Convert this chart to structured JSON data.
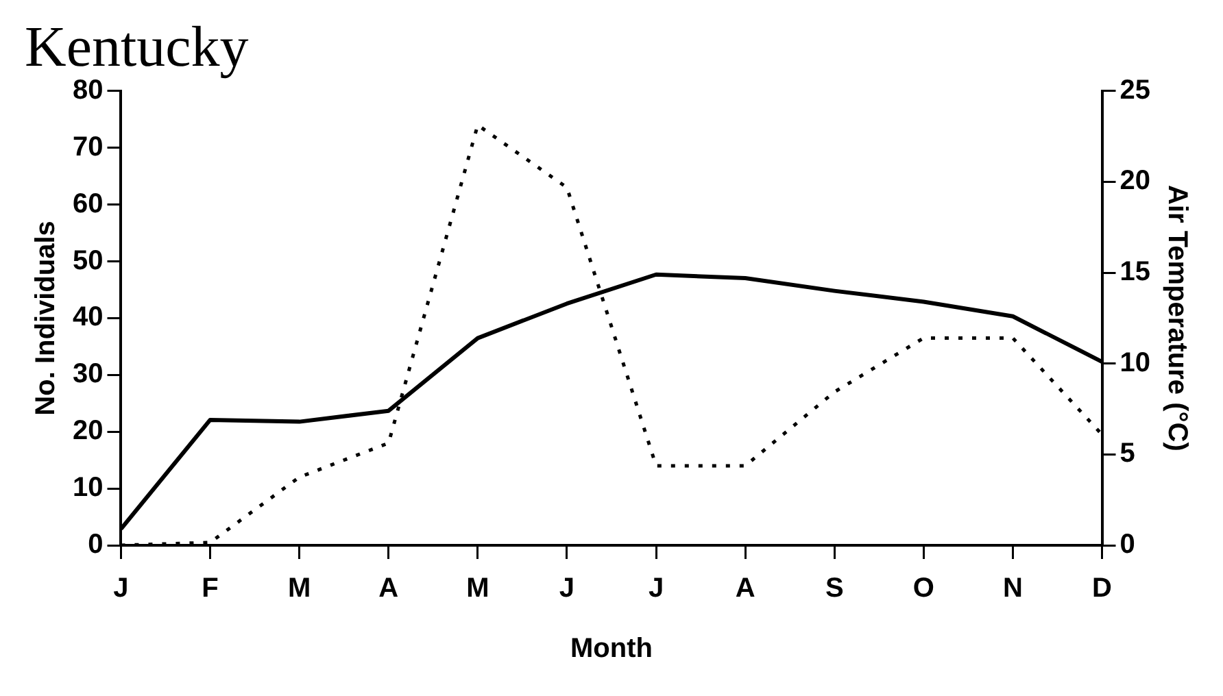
{
  "chart_data": {
    "type": "line",
    "title": "Kentucky",
    "xlabel": "Month",
    "ylabel": "No. Individuals",
    "y2label": "Air Temperature (°C)",
    "categories": [
      "J",
      "F",
      "M",
      "A",
      "M",
      "J",
      "J",
      "A",
      "S",
      "O",
      "N",
      "D"
    ],
    "series": [
      {
        "color": "#000000",
        "line_style": "solid",
        "axis": "y2",
        "values": [
          0.9,
          6.9,
          6.8,
          7.4,
          11.4,
          13.3,
          14.9,
          14.7,
          14.0,
          13.4,
          12.6,
          10.1
        ]
      },
      {
        "color": "#000000",
        "line_style": "dotted",
        "values": [
          0,
          0.5,
          12,
          18,
          74,
          63,
          14,
          14,
          27,
          36.5,
          36.5,
          19.5
        ]
      }
    ],
    "ylim": [
      0,
      80
    ],
    "yticks": [
      0,
      10,
      20,
      30,
      40,
      50,
      60,
      70,
      80
    ],
    "y2lim": [
      0,
      25
    ],
    "y2ticks": [
      0,
      5,
      10,
      15,
      20,
      25
    ],
    "grid": false,
    "legend": false,
    "marker": "none"
  }
}
